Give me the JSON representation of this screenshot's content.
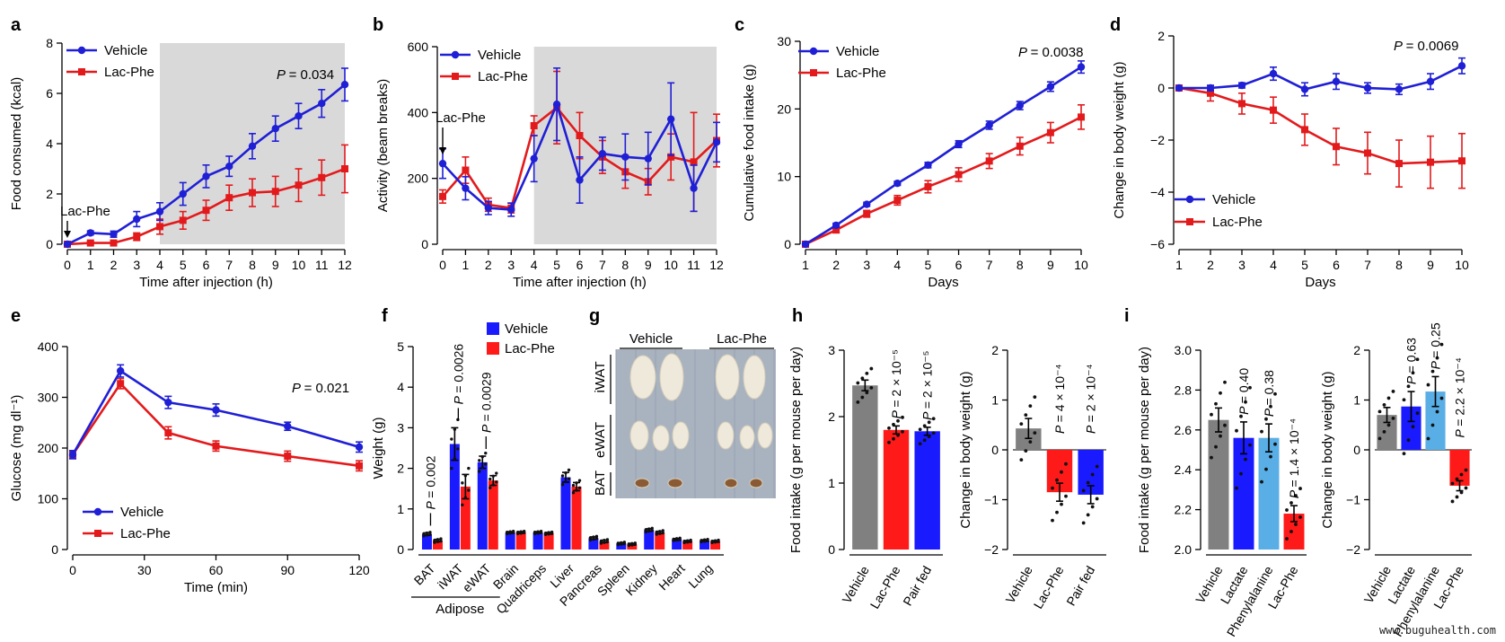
{
  "colors": {
    "vehicle": "#1f1fd6",
    "lacphe": "#e31a1c",
    "grey": "#808080",
    "lightblue": "#5aaee6",
    "shade": "#d9d9d9",
    "blue_bar": "#1a1aff",
    "red_bar": "#ff1a1a",
    "photo_bg": "#a9b3bf"
  },
  "watermark": "www.buguhealth.com",
  "legend": {
    "vehicle": "Vehicle",
    "lacphe": "Lac-Phe"
  },
  "panels": {
    "a": {
      "label": "a",
      "ylabel": "Food consumed (kcal)",
      "xlabel": "Time after injection (h)",
      "pval": "= 0.034",
      "annotation": "Lac-Phe",
      "xticks": [
        "0",
        "1",
        "2",
        "3",
        "4",
        "5",
        "6",
        "7",
        "8",
        "9",
        "10",
        "11",
        "12"
      ],
      "yticks": [
        "0",
        "2",
        "4",
        "6",
        "8"
      ],
      "ylim": [
        0,
        8
      ],
      "shade": [
        4,
        12
      ],
      "vehicle": {
        "y": [
          0.0,
          0.45,
          0.4,
          1.0,
          1.3,
          2.0,
          2.7,
          3.1,
          3.9,
          4.6,
          5.1,
          5.6,
          6.35
        ],
        "err": [
          0.05,
          0.08,
          0.12,
          0.3,
          0.35,
          0.45,
          0.45,
          0.4,
          0.5,
          0.5,
          0.5,
          0.55,
          0.65
        ]
      },
      "lacphe": {
        "y": [
          0.0,
          0.05,
          0.05,
          0.3,
          0.7,
          0.95,
          1.35,
          1.85,
          2.05,
          2.1,
          2.35,
          2.65,
          3.0
        ],
        "err": [
          0.05,
          0.05,
          0.05,
          0.15,
          0.3,
          0.35,
          0.4,
          0.5,
          0.55,
          0.6,
          0.65,
          0.7,
          0.95
        ]
      }
    },
    "b": {
      "label": "b",
      "ylabel": "Activity (beam breaks)",
      "xlabel": "Time after injection (h)",
      "annotation": "Lac-Phe",
      "xticks": [
        "0",
        "1",
        "2",
        "3",
        "4",
        "5",
        "6",
        "7",
        "8",
        "9",
        "10",
        "11",
        "12"
      ],
      "yticks": [
        "0",
        "200",
        "400",
        "600"
      ],
      "ylim": [
        0,
        600
      ],
      "shade": [
        4,
        12
      ],
      "vehicle": {
        "y": [
          245,
          170,
          110,
          105,
          260,
          425,
          195,
          275,
          265,
          260,
          380,
          170,
          310
        ],
        "err": [
          45,
          35,
          20,
          20,
          70,
          110,
          70,
          50,
          70,
          80,
          110,
          70,
          60
        ]
      },
      "lacphe": {
        "y": [
          145,
          225,
          120,
          110,
          360,
          415,
          330,
          265,
          220,
          190,
          265,
          250,
          315
        ],
        "err": [
          20,
          40,
          20,
          15,
          30,
          110,
          70,
          50,
          50,
          40,
          70,
          150,
          80
        ]
      }
    },
    "c": {
      "label": "c",
      "ylabel": "Cumulative food intake (g)",
      "xlabel": "Days",
      "pval": "= 0.0038",
      "xticks": [
        "1",
        "2",
        "3",
        "4",
        "5",
        "6",
        "7",
        "8",
        "9",
        "10"
      ],
      "yticks": [
        "0",
        "10",
        "20",
        "30"
      ],
      "ylim": [
        0,
        30
      ],
      "vehicle": {
        "y": [
          0,
          2.8,
          5.9,
          9.0,
          11.7,
          14.8,
          17.6,
          20.5,
          23.3,
          26.2
        ],
        "err": [
          0.2,
          0.3,
          0.3,
          0.3,
          0.4,
          0.5,
          0.6,
          0.6,
          0.7,
          0.9
        ]
      },
      "lacphe": {
        "y": [
          0,
          2.1,
          4.5,
          6.5,
          8.5,
          10.3,
          12.3,
          14.5,
          16.5,
          18.8
        ],
        "err": [
          0.2,
          0.4,
          0.5,
          0.7,
          0.9,
          1.0,
          1.1,
          1.3,
          1.5,
          1.8
        ]
      }
    },
    "d": {
      "label": "d",
      "ylabel": "Change in body weight (g)",
      "xlabel": "Days",
      "pval": "= 0.0069",
      "xticks": [
        "1",
        "2",
        "3",
        "4",
        "5",
        "6",
        "7",
        "8",
        "9",
        "10"
      ],
      "yticks": [
        "−6",
        "−4",
        "−2",
        "0",
        "2"
      ],
      "ylim": [
        -6,
        2
      ],
      "vehicle": {
        "y": [
          0,
          0,
          0.1,
          0.55,
          -0.05,
          0.25,
          0.0,
          -0.05,
          0.25,
          0.85
        ],
        "err": [
          0.05,
          0.1,
          0.1,
          0.25,
          0.25,
          0.3,
          0.2,
          0.2,
          0.3,
          0.3
        ]
      },
      "lacphe": {
        "y": [
          0,
          -0.2,
          -0.6,
          -0.85,
          -1.6,
          -2.25,
          -2.5,
          -2.9,
          -2.85,
          -2.8
        ],
        "err": [
          0.05,
          0.3,
          0.4,
          0.5,
          0.6,
          0.7,
          0.8,
          0.9,
          1.0,
          1.05
        ]
      }
    },
    "e": {
      "label": "e",
      "ylabel": "Glucose (mg dl⁻¹)",
      "xlabel": "Time (min)",
      "pval": "= 0.021",
      "xticks": [
        "0",
        "30",
        "60",
        "90",
        "120"
      ],
      "yticks": [
        "0",
        "100",
        "200",
        "300",
        "400"
      ],
      "ylim": [
        0,
        400
      ],
      "x": [
        0,
        20,
        40,
        60,
        90,
        120
      ],
      "vehicle": {
        "y": [
          187,
          352,
          290,
          275,
          243,
          202
        ],
        "err": [
          8,
          12,
          12,
          12,
          8,
          10
        ]
      },
      "lacphe": {
        "y": [
          187,
          327,
          230,
          204,
          184,
          165
        ],
        "err": [
          8,
          10,
          12,
          10,
          10,
          10
        ]
      }
    },
    "f": {
      "label": "f",
      "ylabel": "Weight (g)",
      "yticks": [
        "0",
        "1",
        "2",
        "3",
        "4",
        "5"
      ],
      "ylim": [
        0,
        5
      ],
      "group_label": "Adipose",
      "categories": [
        "BAT",
        "iWAT",
        "eWAT",
        "Brain",
        "Quadriceps",
        "Liver",
        "Pancreas",
        "Spleen",
        "Kidney",
        "Heart",
        "Lung"
      ],
      "vehicle": [
        0.38,
        2.6,
        2.15,
        0.42,
        0.42,
        1.78,
        0.28,
        0.15,
        0.48,
        0.25,
        0.22
      ],
      "vehicle_err": [
        0.03,
        0.4,
        0.15,
        0.02,
        0.02,
        0.12,
        0.03,
        0.02,
        0.03,
        0.02,
        0.02
      ],
      "lacphe": [
        0.22,
        1.55,
        1.7,
        0.42,
        0.4,
        1.55,
        0.2,
        0.13,
        0.42,
        0.2,
        0.2
      ],
      "lacphe_err": [
        0.03,
        0.3,
        0.12,
        0.02,
        0.02,
        0.1,
        0.03,
        0.02,
        0.03,
        0.02,
        0.02
      ],
      "pvals": [
        {
          "text": "P = 0.002",
          "cat": 0
        },
        {
          "text": "P = 0.0026",
          "cat": 1
        },
        {
          "text": "P = 0.0029",
          "cat": 2
        }
      ]
    },
    "g": {
      "label": "g",
      "col_labels": [
        "Vehicle",
        "Lac-Phe"
      ],
      "row_labels": [
        "iWAT",
        "eWAT",
        "BAT"
      ]
    },
    "h": {
      "label": "h",
      "left": {
        "ylabel": "Food intake (g per mouse per day)",
        "yticks": [
          "0",
          "1",
          "2",
          "3"
        ],
        "ylim": [
          0,
          3
        ],
        "categories": [
          "Vehicle",
          "Lac-Phe",
          "Pair fed"
        ],
        "values": [
          2.47,
          1.8,
          1.78
        ],
        "err": [
          0.08,
          0.06,
          0.06
        ],
        "pvals": [
          "P = 2 × 10⁻⁵",
          "P = 2 × 10⁻⁵"
        ]
      },
      "right": {
        "ylabel": "Change in body weight (g)",
        "yticks": [
          "−2",
          "−1",
          "0",
          "1",
          "2"
        ],
        "ylim": [
          -2,
          2
        ],
        "categories": [
          "Vehicle",
          "Lac-Phe",
          "Pair fed"
        ],
        "values": [
          0.43,
          -0.85,
          -0.9
        ],
        "err": [
          0.2,
          0.18,
          0.18
        ],
        "pvals": [
          "P = 4 × 10⁻⁴",
          "P = 2 × 10⁻⁴"
        ]
      }
    },
    "i": {
      "label": "i",
      "left": {
        "ylabel": "Food intake (g per mouse per day)",
        "yticks": [
          "2.0",
          "2.2",
          "2.4",
          "2.6",
          "2.8",
          "3.0"
        ],
        "ylim": [
          2.0,
          3.0
        ],
        "categories": [
          "Vehicle",
          "Lactate",
          "Phenylalanine",
          "Lac-Phe"
        ],
        "values": [
          2.65,
          2.56,
          2.56,
          2.18
        ],
        "err": [
          0.06,
          0.08,
          0.07,
          0.04
        ],
        "pvals": [
          "P = 0.40",
          "P = 0.38",
          "P = 1.4 × 10⁻⁴"
        ]
      },
      "right": {
        "ylabel": "Change in body weight (g)",
        "yticks": [
          "−2",
          "−1",
          "0",
          "1",
          "2"
        ],
        "ylim": [
          -2,
          2
        ],
        "categories": [
          "Vehicle",
          "Lactate",
          "Phenylalanine",
          "Lac-Phe"
        ],
        "values": [
          0.7,
          0.87,
          1.17,
          -0.72
        ],
        "err": [
          0.15,
          0.3,
          0.3,
          0.1
        ],
        "pvals": [
          "P = 0.63",
          "P = 0.25",
          "P = 2.2 × 10⁻⁴"
        ]
      }
    }
  }
}
